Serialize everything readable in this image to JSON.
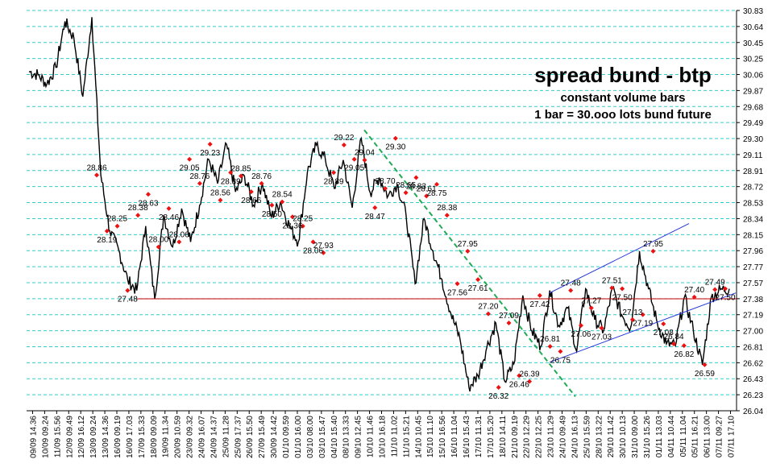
{
  "chart_data": {
    "type": "line",
    "title": "spread bund - btp",
    "subtitle_lines": [
      "constant volume bars",
      "1 bar = 30.ooo lots bund future"
    ],
    "xlabel": "",
    "ylabel": "",
    "ylim": [
      26.04,
      30.83
    ],
    "y_ticks": [
      "30.83",
      "30.64",
      "30.45",
      "30.25",
      "30.06",
      "29.87",
      "29.68",
      "29.49",
      "29.30",
      "29.11",
      "28.91",
      "28.72",
      "28.53",
      "28.34",
      "28.15",
      "27.96",
      "27.77",
      "27.57",
      "27.38",
      "27.19",
      "27.00",
      "26.81",
      "26.62",
      "26.43",
      "26.23",
      "26.04"
    ],
    "x_ticks": [
      "09/09 14.36",
      "10/09 09.24",
      "11/09 15.56",
      "12/09 09.49",
      "12/09 16.12",
      "13/09 09.24",
      "13/09 14.36",
      "16/09 09.19",
      "16/09 17.03",
      "17/09 15.33",
      "18/09 09.09",
      "19/09 11.34",
      "20/09 10.59",
      "23/09 09.32",
      "24/09 16.07",
      "24/09 14.37",
      "25/09 11.28",
      "25/09 17.37",
      "26/09 15.50",
      "27/09 15.49",
      "30/09 14.42",
      "01/10 09.59",
      "01/10 16.00",
      "03/10 08.00",
      "03/10 15.47",
      "04/10 15.40",
      "08/10 13.33",
      "09/10 12.45",
      "10/10 11.46",
      "10/10 16.18",
      "11/10 11.02",
      "11/10 15.21",
      "14/10 10.45",
      "15/10 11.10",
      "15/10 16.56",
      "16/10 11.04",
      "16/10 15.43",
      "17/10 11.31",
      "17/10 15.20",
      "18/10 14.11",
      "21/10 09.19",
      "22/10 12.29",
      "22/10 12.25",
      "23/10 11.29",
      "24/10 09.49",
      "24/10 16.13",
      "25/10 15.59",
      "28/10 13.22",
      "29/10 11.42",
      "30/10 10.13",
      "31/10 09.00",
      "31/10 15.26",
      "01/11 13.03",
      "04/11 10.44",
      "05/11 11.04",
      "05/11 16.21",
      "06/11 13.00",
      "07/11 09.27",
      "07/11 17.10"
    ],
    "series": [
      {
        "values": [
          30.1,
          30.06,
          29.95,
          30.15,
          30.7,
          30.5,
          29.8,
          30.75,
          28.86,
          28.19,
          27.96,
          27.6,
          27.48,
          28.25,
          27.38,
          28.38,
          28.0,
          28.46,
          28.06,
          28.5,
          29.05,
          28.76,
          29.23,
          28.66,
          28.85,
          28.5,
          28.76,
          28.36,
          28.54,
          28.25,
          28.06,
          28.89,
          29.22,
          29.05,
          28.7,
          29.04,
          28.47,
          29.3,
          28.65,
          28.83,
          28.61,
          28.75,
          28.38,
          27.56,
          28.34,
          27.95,
          27.61,
          27.2,
          26.9,
          26.32,
          26.46,
          26.8,
          27.09,
          26.39,
          26.6,
          27.42,
          27.0,
          26.81,
          27.48,
          27.06,
          27.27,
          26.75,
          27.5,
          27.13,
          27.0,
          27.5,
          27.19,
          27.03,
          27.95,
          27.5,
          27.08,
          26.84,
          26.82,
          27.4,
          27.0,
          26.59,
          27.4,
          27.49,
          27.5
        ]
      },
      {
        "values": [
          27.38,
          27.38
        ]
      },
      {
        "values": [
          26.62,
          27.45,
          28.28
        ]
      },
      {
        "values": [
          29.4,
          28.2,
          26.21
        ]
      }
    ],
    "point_labels": [
      "28.86",
      "28.19",
      "28.25",
      "27.48",
      "28.38",
      "28.63",
      "28.00",
      "28.46",
      "28.06",
      "29.05",
      "28.76",
      "29.23",
      "28.56",
      "28.89",
      "28.85",
      "28.66",
      "28.76",
      "28.50",
      "28.54",
      "28.36",
      "28.25",
      "28.06",
      "27.93",
      "28.89",
      "29.22",
      "29.05",
      "29.04",
      "28.47",
      "28.70",
      "29.30",
      "28.65",
      "28.83",
      "28.61",
      "28.75",
      "28.38",
      "27.56",
      "27.95",
      "27.61",
      "27.20",
      "26.32",
      "27.09",
      "26.46",
      "26.39",
      "27.42",
      "26.81",
      "26.75",
      "27.48",
      "27.06",
      "27.27",
      "27.03",
      "27.51",
      "27.50",
      "27.13",
      "27.19",
      "27.95",
      "27.08",
      "26.84",
      "26.82",
      "27.40",
      "26.59",
      "27.49",
      "27.50"
    ],
    "grid": true
  }
}
